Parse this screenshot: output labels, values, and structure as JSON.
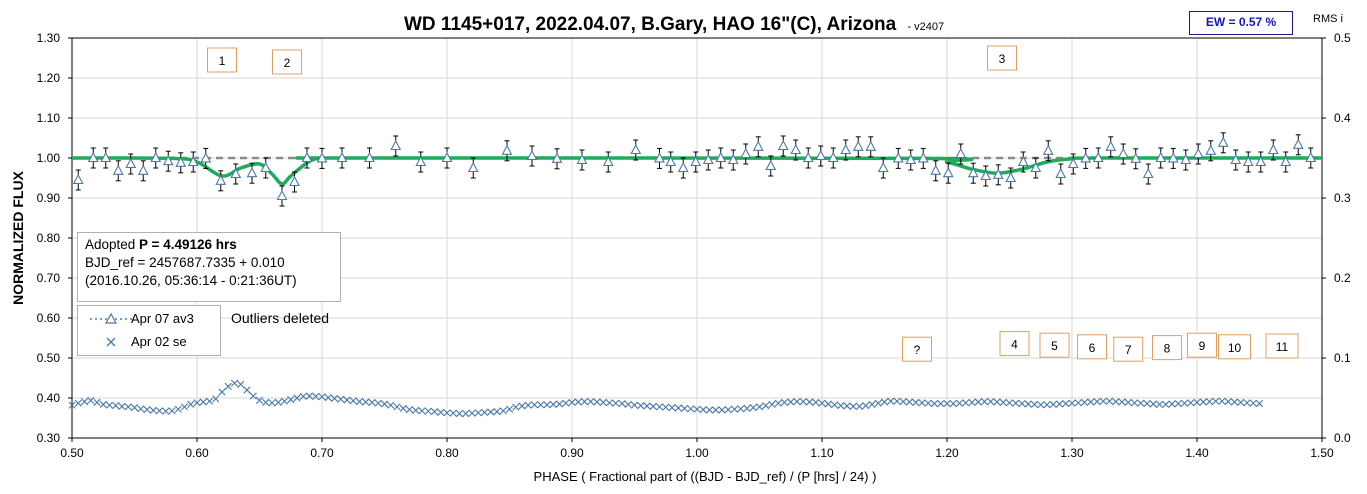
{
  "chart_data": {
    "type": "scatter",
    "title": "WD 1145+017, 2022.04.07, B.Gary, HAO 16\"(C), Arizona",
    "title_version": "- v2407",
    "xlabel": "PHASE ( Fractional part of ((BJD - BJD_ref) / (P [hrs] / 24) )",
    "ylabel": "NORMALIZED FLUX",
    "y2label": "RMS i",
    "xlim": [
      0.5,
      1.5
    ],
    "ylim": [
      0.3,
      1.3
    ],
    "y2lim": [
      0.0,
      0.5
    ],
    "x_ticks": [
      "0.50",
      "0.60",
      "0.70",
      "0.80",
      "0.90",
      "1.00",
      "1.10",
      "1.20",
      "1.30",
      "1.40",
      "1.50"
    ],
    "y_ticks": [
      "0.30",
      "0.40",
      "0.50",
      "0.60",
      "0.70",
      "0.80",
      "0.90",
      "1.00",
      "1.10",
      "1.20",
      "1.30"
    ],
    "y2_ticks": [
      "0.0",
      "0.1",
      "0.2",
      "0.3",
      "0.4",
      "0.5"
    ],
    "grid": true,
    "baseline": 1.0,
    "colors": {
      "series": "#4a78a8",
      "model": "#1faa5e",
      "baseline": "#8c8c8c",
      "errorbar": "#000000",
      "annotation_border": "#e0a060",
      "ew": "#1515c0"
    },
    "series": [
      {
        "name": "Apr 07 av3",
        "marker": "triangle",
        "x": [
          0.505,
          0.517,
          0.527,
          0.537,
          0.547,
          0.557,
          0.567,
          0.577,
          0.587,
          0.597,
          0.607,
          0.619,
          0.631,
          0.644,
          0.655,
          0.668,
          0.678,
          0.688,
          0.7,
          0.716,
          0.738,
          0.759,
          0.779,
          0.8,
          0.821,
          0.848,
          0.868,
          0.888,
          0.908,
          0.929,
          0.951,
          0.97,
          0.979,
          0.989,
          0.999,
          1.009,
          1.019,
          1.029,
          1.039,
          1.049,
          1.059,
          1.069,
          1.079,
          1.089,
          1.099,
          1.109,
          1.119,
          1.129,
          1.139,
          1.149,
          1.161,
          1.171,
          1.181,
          1.191,
          1.201,
          1.211,
          1.221,
          1.231,
          1.241,
          1.251,
          1.261,
          1.271,
          1.281,
          1.291,
          1.301,
          1.311,
          1.321,
          1.331,
          1.341,
          1.351,
          1.361,
          1.371,
          1.381,
          1.391,
          1.401,
          1.411,
          1.421,
          1.431,
          1.441,
          1.451,
          1.461,
          1.471,
          1.481,
          1.491
        ],
        "values": [
          0.945,
          1.0,
          1.0,
          0.968,
          0.985,
          0.968,
          1.0,
          0.992,
          0.988,
          0.99,
          0.999,
          0.943,
          0.96,
          0.962,
          0.975,
          0.905,
          0.94,
          1.0,
          0.999,
          1.0,
          1.0,
          1.03,
          0.99,
          1.0,
          0.975,
          1.018,
          1.005,
          0.998,
          0.995,
          0.99,
          1.02,
          0.999,
          0.99,
          0.975,
          0.99,
          0.995,
          1.0,
          0.995,
          1.01,
          1.028,
          0.98,
          1.03,
          1.02,
          1.0,
          1.005,
          1.0,
          1.02,
          1.028,
          1.028,
          0.975,
          0.999,
          0.995,
          0.999,
          0.968,
          0.962,
          1.01,
          0.962,
          0.955,
          0.958,
          0.95,
          0.99,
          0.975,
          1.018,
          0.96,
          0.985,
          0.999,
          1.0,
          1.028,
          1.01,
          0.998,
          0.96,
          1.0,
          0.999,
          0.995,
          1.01,
          1.018,
          1.038,
          0.995,
          0.99,
          0.99,
          1.02,
          0.99,
          1.033,
          1.0
        ],
        "error": 0.025
      },
      {
        "name": "Apr 02 se",
        "marker": "x",
        "x_start": 0.5,
        "x_step": 0.005,
        "values": [
          0.382,
          0.387,
          0.391,
          0.394,
          0.389,
          0.384,
          0.382,
          0.381,
          0.379,
          0.378,
          0.376,
          0.373,
          0.371,
          0.369,
          0.368,
          0.367,
          0.368,
          0.372,
          0.378,
          0.384,
          0.388,
          0.39,
          0.392,
          0.398,
          0.415,
          0.429,
          0.437,
          0.434,
          0.42,
          0.405,
          0.394,
          0.389,
          0.388,
          0.389,
          0.392,
          0.396,
          0.4,
          0.404,
          0.405,
          0.404,
          0.403,
          0.401,
          0.399,
          0.397,
          0.395,
          0.393,
          0.391,
          0.39,
          0.389,
          0.387,
          0.385,
          0.382,
          0.378,
          0.374,
          0.371,
          0.369,
          0.368,
          0.367,
          0.366,
          0.364,
          0.363,
          0.362,
          0.361,
          0.361,
          0.362,
          0.363,
          0.364,
          0.365,
          0.366,
          0.368,
          0.372,
          0.377,
          0.38,
          0.382,
          0.383,
          0.383,
          0.383,
          0.384,
          0.385,
          0.387,
          0.389,
          0.39,
          0.391,
          0.391,
          0.39,
          0.389,
          0.388,
          0.387,
          0.386,
          0.384,
          0.382,
          0.381,
          0.38,
          0.379,
          0.378,
          0.377,
          0.376,
          0.375,
          0.374,
          0.373,
          0.372,
          0.371,
          0.37,
          0.37,
          0.37,
          0.371,
          0.372,
          0.373,
          0.374,
          0.376,
          0.378,
          0.381,
          0.384,
          0.387,
          0.389,
          0.39,
          0.391,
          0.391,
          0.39,
          0.389,
          0.387,
          0.385,
          0.383,
          0.381,
          0.38,
          0.379,
          0.379,
          0.381,
          0.384,
          0.387,
          0.39,
          0.392,
          0.392,
          0.391,
          0.39,
          0.389,
          0.388,
          0.387,
          0.386,
          0.386,
          0.386,
          0.386,
          0.387,
          0.388,
          0.389,
          0.39,
          0.391,
          0.391,
          0.39,
          0.389,
          0.388,
          0.387,
          0.386,
          0.385,
          0.384,
          0.383,
          0.383,
          0.384,
          0.385,
          0.386,
          0.387,
          0.388,
          0.389,
          0.39,
          0.391,
          0.392,
          0.392,
          0.391,
          0.39,
          0.389,
          0.388,
          0.387,
          0.386,
          0.385,
          0.384,
          0.384,
          0.385,
          0.386,
          0.387,
          0.388,
          0.389,
          0.39,
          0.391,
          0.392,
          0.392,
          0.391,
          0.39,
          0.389,
          0.388,
          0.387,
          0.386
        ]
      }
    ],
    "model_curve": {
      "x": [
        0.5,
        0.58,
        0.6,
        0.62,
        0.635,
        0.65,
        0.66,
        0.668,
        0.675,
        0.69,
        0.7,
        0.72,
        1.18,
        1.2,
        1.22,
        1.24,
        1.26,
        1.28,
        1.3,
        1.32,
        1.5
      ],
      "values": [
        1.0,
        0.999,
        0.99,
        0.955,
        0.975,
        0.985,
        0.96,
        0.935,
        0.955,
        0.992,
        0.999,
        1.0,
        0.999,
        0.99,
        0.972,
        0.962,
        0.972,
        0.99,
        0.998,
        1.0,
        1.0
      ]
    },
    "annotations": [
      {
        "label": "1",
        "x": 0.62,
        "y": 1.245
      },
      {
        "label": "2",
        "x": 0.672,
        "y": 1.24
      },
      {
        "label": "3",
        "x": 1.244,
        "y": 1.25
      },
      {
        "label": "?",
        "x": 1.176,
        "y": 0.522
      },
      {
        "label": "4",
        "x": 1.254,
        "y": 0.536
      },
      {
        "label": "5",
        "x": 1.286,
        "y": 0.532
      },
      {
        "label": "6",
        "x": 1.316,
        "y": 0.528
      },
      {
        "label": "7",
        "x": 1.345,
        "y": 0.522
      },
      {
        "label": "8",
        "x": 1.376,
        "y": 0.526
      },
      {
        "label": "9",
        "x": 1.404,
        "y": 0.532
      },
      {
        "label": "10",
        "x": 1.43,
        "y": 0.528
      },
      {
        "label": "11",
        "x": 1.468,
        "y": 0.53
      }
    ]
  },
  "info": {
    "line1_prefix": "Adopted ",
    "line1_bold": "P = 4.49126 hrs",
    "line2": "BJD_ref = 2457687.7335 + 0.010",
    "line3": "(2016.10.26, 05:36:14 - 0:21:36UT)"
  },
  "outliers_note": "Outliers deleted",
  "ew_label": "EW = 0.57 %"
}
